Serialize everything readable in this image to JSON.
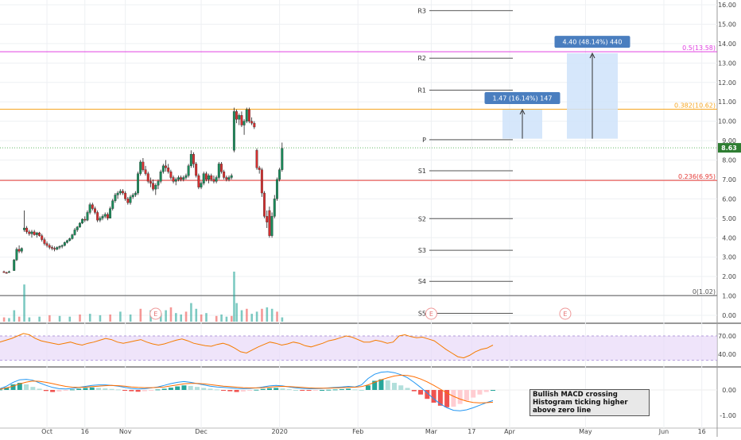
{
  "chart_data": {
    "type": "candlestick",
    "price_axis": {
      "ticks": [
        "16.00",
        "15.00",
        "14.00",
        "13.00",
        "12.00",
        "11.00",
        "10.00",
        "9.00",
        "8.00",
        "7.00",
        "6.00",
        "5.00",
        "4.00",
        "3.00",
        "2.00",
        "1.00",
        "0.00"
      ],
      "last_price": "8.63"
    },
    "time_axis": {
      "ticks": [
        {
          "label": "Oct",
          "day": 17
        },
        {
          "label": "16",
          "day": 32
        },
        {
          "label": "Nov",
          "day": 48
        },
        {
          "label": "Dec",
          "day": 78
        },
        {
          "label": "2020",
          "day": 109
        },
        {
          "label": "Feb",
          "day": 140
        },
        {
          "label": "Mar",
          "day": 169
        },
        {
          "label": "17",
          "day": 185
        },
        {
          "label": "Apr",
          "day": 200
        },
        {
          "label": "May",
          "day": 230
        },
        {
          "label": "Jun",
          "day": 261
        },
        {
          "label": "16",
          "day": 276
        }
      ]
    },
    "candles": [
      [
        0,
        2.25,
        2.3,
        2.2,
        2.2
      ],
      [
        1,
        2.2,
        2.25,
        2.15,
        2.18
      ],
      [
        2,
        2.2,
        2.3,
        2.2,
        2.25
      ],
      [
        4,
        2.3,
        2.9,
        2.3,
        2.85
      ],
      [
        5,
        2.85,
        3.5,
        2.8,
        3.4
      ],
      [
        6,
        3.4,
        3.6,
        3.2,
        3.3
      ],
      [
        7,
        3.3,
        3.5,
        3.2,
        3.45
      ],
      [
        8,
        4.4,
        5.4,
        4.3,
        4.5
      ],
      [
        9,
        4.5,
        4.6,
        4.2,
        4.3
      ],
      [
        10,
        4.3,
        4.4,
        4.1,
        4.2
      ],
      [
        11,
        4.2,
        4.4,
        4.0,
        4.3
      ],
      [
        12,
        4.3,
        4.4,
        4.1,
        4.15
      ],
      [
        13,
        4.15,
        4.3,
        4.0,
        4.25
      ],
      [
        14,
        4.25,
        4.3,
        4.05,
        4.1
      ],
      [
        15,
        4.1,
        4.2,
        3.8,
        3.9
      ],
      [
        16,
        3.9,
        4.0,
        3.6,
        3.7
      ],
      [
        17,
        3.7,
        3.8,
        3.5,
        3.6
      ],
      [
        18,
        3.6,
        3.7,
        3.4,
        3.5
      ],
      [
        19,
        3.5,
        3.6,
        3.35,
        3.45
      ],
      [
        20,
        3.45,
        3.55,
        3.3,
        3.4
      ],
      [
        21,
        3.4,
        3.55,
        3.35,
        3.5
      ],
      [
        22,
        3.5,
        3.6,
        3.4,
        3.55
      ],
      [
        23,
        3.55,
        3.65,
        3.45,
        3.6
      ],
      [
        24,
        3.6,
        3.8,
        3.55,
        3.75
      ],
      [
        25,
        3.75,
        3.9,
        3.7,
        3.85
      ],
      [
        26,
        3.85,
        4.0,
        3.8,
        3.95
      ],
      [
        27,
        3.95,
        4.2,
        3.9,
        4.15
      ],
      [
        28,
        4.15,
        4.5,
        4.1,
        4.4
      ],
      [
        29,
        4.4,
        4.6,
        4.3,
        4.55
      ],
      [
        30,
        4.55,
        4.8,
        4.5,
        4.75
      ],
      [
        31,
        4.75,
        5.0,
        4.7,
        4.95
      ],
      [
        32,
        4.95,
        5.1,
        4.8,
        4.9
      ],
      [
        33,
        4.9,
        5.4,
        4.85,
        5.3
      ],
      [
        34,
        5.3,
        5.8,
        5.2,
        5.7
      ],
      [
        35,
        5.7,
        5.8,
        5.4,
        5.5
      ],
      [
        36,
        5.5,
        5.6,
        5.2,
        5.3
      ],
      [
        37,
        5.3,
        5.4,
        4.8,
        4.9
      ],
      [
        38,
        4.9,
        5.1,
        4.8,
        5.0
      ],
      [
        39,
        5.0,
        5.2,
        4.9,
        5.1
      ],
      [
        40,
        5.1,
        5.3,
        5.0,
        5.2
      ],
      [
        41,
        5.2,
        5.3,
        4.9,
        5.0
      ],
      [
        42,
        5.0,
        5.6,
        5.0,
        5.5
      ],
      [
        43,
        5.5,
        6.0,
        5.4,
        5.9
      ],
      [
        44,
        5.9,
        6.3,
        5.8,
        6.2
      ],
      [
        45,
        6.2,
        6.4,
        6.0,
        6.3
      ],
      [
        46,
        6.3,
        6.5,
        6.2,
        6.4
      ],
      [
        47,
        6.4,
        6.5,
        6.2,
        6.3
      ],
      [
        48,
        6.3,
        6.4,
        5.9,
        6.0
      ],
      [
        49,
        6.0,
        6.1,
        5.7,
        5.8
      ],
      [
        50,
        5.8,
        6.2,
        5.7,
        6.1
      ],
      [
        51,
        6.1,
        6.3,
        6.0,
        6.2
      ],
      [
        52,
        6.2,
        6.4,
        6.1,
        6.3
      ],
      [
        53,
        6.3,
        7.4,
        6.2,
        7.3
      ],
      [
        54,
        7.3,
        8.0,
        7.2,
        7.9
      ],
      [
        55,
        7.9,
        8.1,
        7.4,
        7.5
      ],
      [
        56,
        7.5,
        7.7,
        7.2,
        7.3
      ],
      [
        57,
        7.3,
        7.4,
        6.8,
        6.9
      ],
      [
        58,
        6.9,
        7.1,
        6.6,
        6.8
      ],
      [
        59,
        6.8,
        7.0,
        6.4,
        6.5
      ],
      [
        60,
        6.5,
        6.8,
        6.2,
        6.7
      ],
      [
        61,
        6.7,
        7.0,
        6.5,
        6.9
      ],
      [
        62,
        6.9,
        7.5,
        6.8,
        7.4
      ],
      [
        63,
        7.4,
        7.8,
        7.3,
        7.7
      ],
      [
        64,
        7.7,
        8.0,
        7.4,
        7.6
      ],
      [
        65,
        7.6,
        7.8,
        7.3,
        7.4
      ],
      [
        66,
        7.4,
        7.5,
        7.0,
        7.1
      ],
      [
        67,
        7.1,
        7.2,
        6.8,
        6.9
      ],
      [
        68,
        6.9,
        7.1,
        6.7,
        7.0
      ],
      [
        69,
        7.0,
        7.2,
        6.9,
        7.1
      ],
      [
        70,
        7.1,
        7.2,
        6.9,
        7.0
      ],
      [
        71,
        7.0,
        7.2,
        6.9,
        7.1
      ],
      [
        72,
        7.1,
        7.3,
        7.0,
        7.2
      ],
      [
        73,
        7.2,
        7.8,
        7.1,
        7.7
      ],
      [
        74,
        7.7,
        8.5,
        7.6,
        8.3
      ],
      [
        75,
        8.3,
        8.4,
        7.6,
        7.8
      ],
      [
        76,
        7.8,
        7.9,
        7.1,
        7.2
      ],
      [
        77,
        7.2,
        7.3,
        6.5,
        6.6
      ],
      [
        78,
        6.6,
        6.9,
        6.5,
        6.8
      ],
      [
        79,
        6.8,
        7.4,
        6.7,
        7.3
      ],
      [
        80,
        7.3,
        7.4,
        6.9,
        7.0
      ],
      [
        81,
        7.0,
        7.3,
        6.8,
        7.2
      ],
      [
        82,
        7.2,
        7.3,
        6.9,
        7.0
      ],
      [
        83,
        7.0,
        7.2,
        6.8,
        6.9
      ],
      [
        84,
        6.9,
        7.2,
        6.8,
        7.1
      ],
      [
        85,
        7.1,
        7.9,
        7.0,
        7.8
      ],
      [
        86,
        7.8,
        7.9,
        7.3,
        7.4
      ],
      [
        87,
        7.4,
        7.5,
        7.0,
        7.1
      ],
      [
        88,
        7.1,
        7.2,
        6.9,
        7.0
      ],
      [
        89,
        7.0,
        7.2,
        6.9,
        7.1
      ],
      [
        90,
        7.1,
        7.3,
        7.0,
        7.2
      ],
      [
        91,
        8.5,
        10.7,
        8.4,
        10.5
      ],
      [
        92,
        10.5,
        10.6,
        9.9,
        10.1
      ],
      [
        93,
        10.1,
        10.4,
        9.8,
        10.3
      ],
      [
        94,
        10.3,
        10.5,
        9.7,
        9.8
      ],
      [
        95,
        9.8,
        10.1,
        9.3,
        10.0
      ],
      [
        96,
        10.0,
        10.7,
        9.9,
        10.6
      ],
      [
        97,
        10.6,
        10.7,
        9.9,
        10.0
      ],
      [
        98,
        10.0,
        10.2,
        9.8,
        9.9
      ],
      [
        99,
        9.9,
        10.0,
        9.6,
        9.7
      ],
      [
        100,
        8.5,
        8.6,
        7.5,
        7.6
      ],
      [
        101,
        7.6,
        7.7,
        7.3,
        7.5
      ],
      [
        102,
        7.5,
        7.6,
        6.1,
        6.3
      ],
      [
        103,
        6.3,
        6.4,
        5.0,
        5.1
      ],
      [
        104,
        5.1,
        5.4,
        4.5,
        4.8
      ],
      [
        105,
        5.4,
        5.6,
        4.0,
        4.1
      ],
      [
        106,
        4.1,
        5.3,
        4.0,
        5.1
      ],
      [
        107,
        5.1,
        6.2,
        5.0,
        6.0
      ],
      [
        108,
        6.0,
        7.1,
        5.9,
        7.0
      ],
      [
        109,
        7.0,
        7.6,
        6.9,
        7.5
      ],
      [
        110,
        7.5,
        8.9,
        7.4,
        8.6
      ]
    ],
    "volume": [
      [
        0,
        0.3
      ],
      [
        2,
        0.25
      ],
      [
        4,
        0.8
      ],
      [
        6,
        0.35
      ],
      [
        8,
        2.6
      ],
      [
        10,
        0.3
      ],
      [
        14,
        0.35
      ],
      [
        18,
        0.45
      ],
      [
        22,
        0.4
      ],
      [
        26,
        0.35
      ],
      [
        30,
        0.5
      ],
      [
        34,
        0.55
      ],
      [
        38,
        0.45
      ],
      [
        42,
        0.5
      ],
      [
        46,
        0.7
      ],
      [
        50,
        0.5
      ],
      [
        54,
        0.9
      ],
      [
        58,
        0.8
      ],
      [
        62,
        0.6
      ],
      [
        64,
        0.8
      ],
      [
        66,
        1.0
      ],
      [
        68,
        0.6
      ],
      [
        70,
        0.5
      ],
      [
        72,
        0.7
      ],
      [
        74,
        1.3
      ],
      [
        76,
        0.9
      ],
      [
        78,
        0.5
      ],
      [
        80,
        0.6
      ],
      [
        84,
        0.4
      ],
      [
        86,
        0.5
      ],
      [
        88,
        0.35
      ],
      [
        90,
        0.4
      ],
      [
        91,
        3.5
      ],
      [
        92,
        1.3
      ],
      [
        94,
        0.8
      ],
      [
        96,
        0.9
      ],
      [
        98,
        0.55
      ],
      [
        100,
        0.7
      ],
      [
        102,
        0.9
      ],
      [
        104,
        1.0
      ],
      [
        106,
        0.9
      ],
      [
        108,
        0.7
      ],
      [
        110,
        0.3
      ]
    ],
    "fib_levels": [
      {
        "label": "0.5(13.58)",
        "value": 13.58,
        "color": "#e040e0"
      },
      {
        "label": "0.382(10.62)",
        "value": 10.62,
        "color": "#f5a623"
      },
      {
        "label": "0.236(6.95)",
        "value": 6.95,
        "color": "#e53935"
      },
      {
        "label": "0(1.02)",
        "value": 1.02,
        "color": "#555555"
      }
    ],
    "pivots": [
      {
        "label": "R3",
        "value": 15.7
      },
      {
        "label": "R2",
        "value": 13.25
      },
      {
        "label": "R1",
        "value": 11.6
      },
      {
        "label": "P",
        "value": 9.05
      },
      {
        "label": "S1",
        "value": 7.45
      },
      {
        "label": "S2",
        "value": 4.98
      },
      {
        "label": "S3",
        "value": 3.35
      },
      {
        "label": "S4",
        "value": 1.75
      },
      {
        "label": "S5",
        "value": 0.1
      }
    ],
    "measures": [
      {
        "label": "1.47 (16.14%) 147",
        "from": 9.1,
        "to": 10.6
      },
      {
        "label": "4.40 (48.14%) 440",
        "from": 9.1,
        "to": 13.5
      }
    ],
    "earnings_marks": [
      {
        "label": "E",
        "day": 60
      },
      {
        "label": "E",
        "day": 169
      },
      {
        "label": "E",
        "day": 222
      }
    ],
    "rsi": {
      "ticks": [
        "70.00",
        "40.00"
      ],
      "values": [
        60,
        63,
        66,
        70,
        74,
        72,
        66,
        62,
        60,
        58,
        56,
        58,
        60,
        57,
        55,
        58,
        60,
        63,
        66,
        64,
        60,
        58,
        60,
        62,
        64,
        60,
        57,
        55,
        57,
        60,
        63,
        65,
        62,
        58,
        56,
        54,
        53,
        56,
        58,
        55,
        50,
        44,
        42,
        47,
        52,
        56,
        60,
        58,
        55,
        57,
        60,
        58,
        54,
        52,
        55,
        58,
        62,
        64,
        67,
        70,
        68,
        64,
        60,
        60,
        63,
        61,
        58,
        60,
        70,
        72,
        69,
        67,
        68,
        65,
        62,
        55,
        48,
        42,
        36,
        34,
        38,
        44,
        48,
        50,
        55
      ]
    },
    "macd": {
      "ticks": [
        "0.00",
        "-1.00"
      ],
      "histogram": [
        0.02,
        0.1,
        0.22,
        0.28,
        0.22,
        0.12,
        0.05,
        -0.04,
        -0.08,
        -0.06,
        -0.02,
        0.02,
        0.05,
        0.08,
        0.1,
        0.08,
        0.06,
        0.04,
        0.02,
        -0.02,
        -0.05,
        -0.07,
        -0.05,
        -0.02,
        0.02,
        0.05,
        0.09,
        0.14,
        0.18,
        0.16,
        0.12,
        0.08,
        0.05,
        0.02,
        -0.02,
        -0.05,
        -0.08,
        -0.06,
        -0.03,
        0.01,
        0.04,
        0.07,
        0.08,
        0.06,
        0.03,
        0.0,
        -0.02,
        -0.03,
        -0.02,
        0.0,
        0.01,
        0.02,
        0.03,
        0.05,
        0.02,
        0.0,
        0.18,
        0.36,
        0.42,
        0.38,
        0.28,
        0.18,
        0.08,
        -0.05,
        -0.18,
        -0.35,
        -0.5,
        -0.62,
        -0.68,
        -0.66,
        -0.55,
        -0.42,
        -0.3,
        -0.18,
        -0.08,
        0.0
      ],
      "macd_line": [
        0.05,
        0.15,
        0.3,
        0.4,
        0.42,
        0.38,
        0.28,
        0.18,
        0.1,
        0.05,
        0.04,
        0.06,
        0.1,
        0.14,
        0.18,
        0.2,
        0.2,
        0.18,
        0.15,
        0.1,
        0.06,
        0.04,
        0.05,
        0.08,
        0.12,
        0.18,
        0.25,
        0.3,
        0.33,
        0.3,
        0.25,
        0.2,
        0.15,
        0.12,
        0.1,
        0.08,
        0.06,
        0.05,
        0.06,
        0.08,
        0.12,
        0.16,
        0.18,
        0.16,
        0.12,
        0.08,
        0.06,
        0.05,
        0.05,
        0.06,
        0.08,
        0.1,
        0.12,
        0.14,
        0.12,
        0.2,
        0.45,
        0.62,
        0.7,
        0.72,
        0.68,
        0.6,
        0.48,
        0.3,
        0.1,
        -0.12,
        -0.35,
        -0.55,
        -0.7,
        -0.8,
        -0.82,
        -0.78,
        -0.7,
        -0.6,
        -0.5,
        -0.42
      ],
      "signal_line": [
        0.03,
        0.08,
        0.15,
        0.24,
        0.31,
        0.35,
        0.34,
        0.3,
        0.25,
        0.19,
        0.14,
        0.11,
        0.1,
        0.11,
        0.13,
        0.15,
        0.17,
        0.18,
        0.17,
        0.15,
        0.12,
        0.1,
        0.09,
        0.09,
        0.1,
        0.12,
        0.16,
        0.2,
        0.24,
        0.26,
        0.26,
        0.24,
        0.21,
        0.18,
        0.15,
        0.13,
        0.11,
        0.09,
        0.08,
        0.08,
        0.09,
        0.11,
        0.13,
        0.14,
        0.13,
        0.12,
        0.1,
        0.08,
        0.07,
        0.07,
        0.07,
        0.08,
        0.09,
        0.1,
        0.11,
        0.13,
        0.2,
        0.3,
        0.4,
        0.48,
        0.55,
        0.58,
        0.57,
        0.52,
        0.43,
        0.32,
        0.18,
        0.03,
        -0.12,
        -0.25,
        -0.36,
        -0.44,
        -0.49,
        -0.51,
        -0.5,
        -0.48
      ]
    }
  },
  "annotation": {
    "line1": "Bullish MACD crossing",
    "line2": "Histogram ticking higher above zero line"
  },
  "colors": {
    "up": "#26a69a",
    "down": "#ef5350",
    "rsi_line": "#f57c00",
    "rsi_band": "#e8d8f8",
    "macd_line": "#2196f3",
    "signal_line": "#ff6d00",
    "measure_fill": "#cfe3fa",
    "measure_label": "#4a7ebf",
    "last_price_bg": "#2e7d32"
  }
}
